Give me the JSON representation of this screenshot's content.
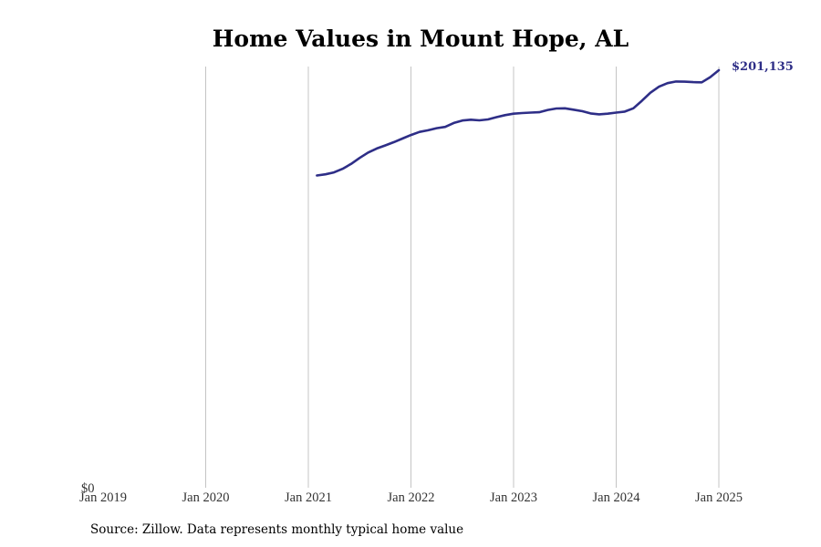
{
  "colors": {
    "line": "#2e2e87",
    "grid": "#c4c4c4",
    "background": "#ffffff"
  },
  "source": "Source: Zillow. Data represents monthly typical home value",
  "chart_data": {
    "type": "line",
    "title": "Home Values in Mount Hope, AL",
    "xlabel": "",
    "ylabel": "",
    "x_ticks": [
      "Jan 2019",
      "Jan 2020",
      "Jan 2021",
      "Jan 2022",
      "Jan 2023",
      "Jan 2024",
      "Jan 2025"
    ],
    "y_ticks": [
      "$0"
    ],
    "xlim": [
      "2019-01",
      "2025-01"
    ],
    "ylim": [
      0,
      201135
    ],
    "grid": "vertical",
    "end_label": "$201,135",
    "series": [
      {
        "color": "#2e2e87",
        "x": [
          "2021-02",
          "2021-03",
          "2021-04",
          "2021-05",
          "2021-06",
          "2021-07",
          "2021-08",
          "2021-09",
          "2021-10",
          "2021-11",
          "2021-12",
          "2022-01",
          "2022-02",
          "2022-03",
          "2022-04",
          "2022-05",
          "2022-06",
          "2022-07",
          "2022-08",
          "2022-09",
          "2022-10",
          "2022-11",
          "2022-12",
          "2023-01",
          "2023-02",
          "2023-03",
          "2023-04",
          "2023-05",
          "2023-06",
          "2023-07",
          "2023-08",
          "2023-09",
          "2023-10",
          "2023-11",
          "2023-12",
          "2024-01",
          "2024-02",
          "2024-03",
          "2024-04",
          "2024-05",
          "2024-06",
          "2024-07",
          "2024-08",
          "2024-09",
          "2024-10",
          "2024-11",
          "2024-12",
          "2025-01"
        ],
        "y": [
          150400,
          151000,
          151900,
          153600,
          156000,
          158900,
          161500,
          163400,
          164900,
          166500,
          168200,
          169900,
          171400,
          172200,
          173200,
          173800,
          175700,
          176900,
          177300,
          177000,
          177400,
          178500,
          179500,
          180200,
          180500,
          180700,
          180900,
          182000,
          182700,
          182800,
          182100,
          181400,
          180300,
          179900,
          180200,
          180700,
          181200,
          182800,
          186400,
          190300,
          193200,
          194900,
          195700,
          195600,
          195400,
          195300,
          197800,
          201135
        ]
      }
    ]
  }
}
